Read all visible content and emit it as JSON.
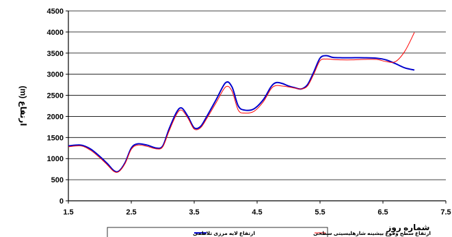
{
  "chart_data": {
    "type": "line",
    "xlabel": "شماره روز",
    "ylabel": "ارتفاع (m)",
    "xlim": [
      1.5,
      7.5
    ],
    "ylim": [
      0,
      4500
    ],
    "x_ticks": [
      1.5,
      2.5,
      3.5,
      4.5,
      5.5,
      6.5,
      7.5
    ],
    "y_ticks": [
      0,
      500,
      1000,
      1500,
      2000,
      2500,
      3000,
      3500,
      4000,
      4500
    ],
    "grid": "horizontal",
    "legend_position": "bottom-center",
    "series": [
      {
        "name": "ارتفاع لایه مرزی تلاطمی",
        "color": "#0000CC",
        "x": [
          1.5,
          1.7,
          1.85,
          2.0,
          2.12,
          2.22,
          2.3,
          2.4,
          2.5,
          2.6,
          2.75,
          2.9,
          3.0,
          3.1,
          3.22,
          3.3,
          3.4,
          3.5,
          3.6,
          3.7,
          3.85,
          4.0,
          4.1,
          4.2,
          4.3,
          4.45,
          4.6,
          4.72,
          4.8,
          4.9,
          5.0,
          5.1,
          5.2,
          5.3,
          5.4,
          5.5,
          5.6,
          5.7,
          5.85,
          6.0,
          6.2,
          6.4,
          6.55,
          6.7,
          6.85,
          7.0
        ],
        "y": [
          1300,
          1320,
          1230,
          1050,
          880,
          720,
          700,
          900,
          1250,
          1350,
          1320,
          1250,
          1300,
          1700,
          2100,
          2200,
          2000,
          1730,
          1760,
          2000,
          2400,
          2800,
          2700,
          2250,
          2150,
          2180,
          2400,
          2700,
          2800,
          2780,
          2720,
          2680,
          2650,
          2750,
          3050,
          3380,
          3440,
          3400,
          3390,
          3390,
          3390,
          3380,
          3340,
          3250,
          3150,
          3100
        ]
      },
      {
        "name": "ارتفاع سطح وقوع بیشینه شارهلیسیتی سطحی",
        "color": "#FF0000",
        "x": [
          1.5,
          1.7,
          1.85,
          2.0,
          2.12,
          2.22,
          2.3,
          2.4,
          2.5,
          2.6,
          2.75,
          2.9,
          3.0,
          3.1,
          3.22,
          3.3,
          3.4,
          3.5,
          3.6,
          3.7,
          3.85,
          4.0,
          4.1,
          4.2,
          4.3,
          4.45,
          4.6,
          4.72,
          4.8,
          4.9,
          5.0,
          5.1,
          5.2,
          5.3,
          5.4,
          5.5,
          5.6,
          5.7,
          5.85,
          6.0,
          6.2,
          6.4,
          6.55,
          6.7,
          6.85,
          7.0
        ],
        "y": [
          1280,
          1300,
          1200,
          1020,
          850,
          700,
          690,
          880,
          1220,
          1320,
          1290,
          1230,
          1280,
          1650,
          2050,
          2150,
          1960,
          1700,
          1730,
          1950,
          2330,
          2700,
          2600,
          2150,
          2080,
          2120,
          2350,
          2650,
          2730,
          2720,
          2700,
          2670,
          2650,
          2720,
          3000,
          3320,
          3360,
          3350,
          3340,
          3340,
          3350,
          3350,
          3300,
          3300,
          3550,
          3990
        ]
      }
    ]
  }
}
